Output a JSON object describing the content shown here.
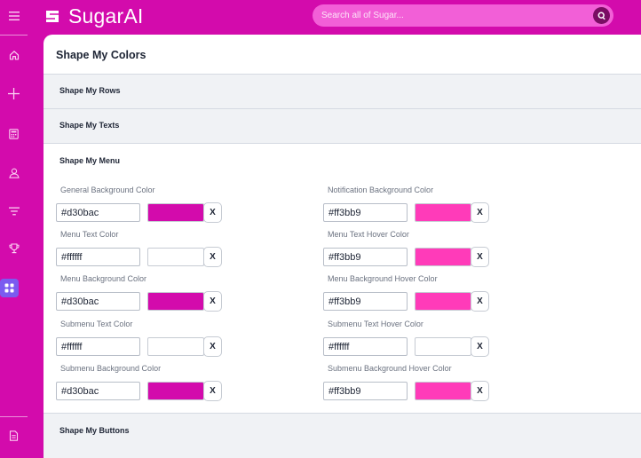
{
  "app": {
    "name": "SugarAI",
    "logo_icon": "sugar-s-logo-icon"
  },
  "search": {
    "placeholder": "Search all of Sugar..."
  },
  "colors": {
    "brand": "#d30bac",
    "search_bg": "#f25fd7",
    "search_btn": "#7a0d63",
    "active_nav": "#7b5bf0"
  },
  "sidebar": {
    "items": [
      {
        "icon": "menu-icon"
      },
      {
        "icon": "home-icon"
      },
      {
        "icon": "plus-icon"
      },
      {
        "icon": "calculator-icon"
      },
      {
        "icon": "user-icon"
      },
      {
        "icon": "filter-icon"
      },
      {
        "icon": "trophy-icon"
      },
      {
        "icon": "apps-grid-icon",
        "active": true
      },
      {
        "icon": "document-icon"
      }
    ]
  },
  "page": {
    "title": "Shape My Colors"
  },
  "sections": {
    "rows": "Shape My Rows",
    "texts": "Shape My Texts",
    "menu": "Shape My Menu",
    "buttons": "Shape My Buttons"
  },
  "menu_fields": {
    "general_bg": {
      "label": "General Background Color",
      "value": "#d30bac",
      "swatch": "#d30bac"
    },
    "notification_bg": {
      "label": "Notification Background Color",
      "value": "#ff3bb9",
      "swatch": "#ff3bb9"
    },
    "menu_text": {
      "label": "Menu Text Color",
      "value": "#ffffff",
      "swatch": "#ffffff"
    },
    "menu_text_hover": {
      "label": "Menu Text Hover Color",
      "value": "#ff3bb9",
      "swatch": "#ff3bb9"
    },
    "menu_bg": {
      "label": "Menu Background Color",
      "value": "#d30bac",
      "swatch": "#d30bac"
    },
    "menu_bg_hover": {
      "label": "Menu Background Hover Color",
      "value": "#ff3bb9",
      "swatch": "#ff3bb9"
    },
    "submenu_text": {
      "label": "Submenu Text Color",
      "value": "#ffffff",
      "swatch": "#ffffff"
    },
    "submenu_text_hover": {
      "label": "Submenu Text Hover Color",
      "value": "#ffffff",
      "swatch": "#ffffff"
    },
    "submenu_bg": {
      "label": "Submenu Background Color",
      "value": "#d30bac",
      "swatch": "#d30bac"
    },
    "submenu_bg_hover": {
      "label": "Submenu Background Hover Color",
      "value": "#ff3bb9",
      "swatch": "#ff3bb9"
    }
  },
  "clear_label": "X"
}
